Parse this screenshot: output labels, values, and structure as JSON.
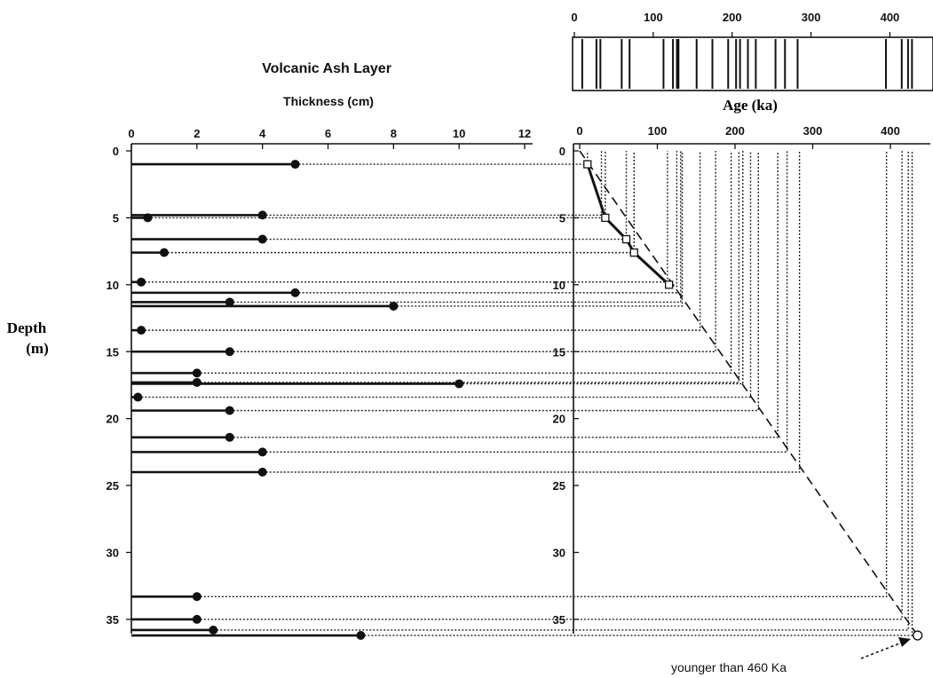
{
  "chart_data": [
    {
      "type": "bar",
      "orientation": "horizontal",
      "title": "Volcanic Ash Layer",
      "xlabel": "Thickness (cm)",
      "ylabel": "Depth (m)",
      "xlim": [
        0,
        12
      ],
      "ylim": [
        0,
        36
      ],
      "x_ticks": [
        "0",
        "2",
        "4",
        "6",
        "8",
        "10",
        "12"
      ],
      "y_ticks": [
        "0",
        "5",
        "10",
        "15",
        "20",
        "25",
        "30",
        "35"
      ],
      "layers": [
        {
          "depth": 1.0,
          "thickness": 5
        },
        {
          "depth": 4.8,
          "thickness": 4
        },
        {
          "depth": 5.0,
          "thickness": 0.5
        },
        {
          "depth": 6.6,
          "thickness": 4
        },
        {
          "depth": 7.6,
          "thickness": 1
        },
        {
          "depth": 9.8,
          "thickness": 0.3
        },
        {
          "depth": 10.6,
          "thickness": 5
        },
        {
          "depth": 11.3,
          "thickness": 3
        },
        {
          "depth": 11.6,
          "thickness": 8
        },
        {
          "depth": 13.4,
          "thickness": 0.3
        },
        {
          "depth": 15.0,
          "thickness": 3
        },
        {
          "depth": 16.6,
          "thickness": 2
        },
        {
          "depth": 17.3,
          "thickness": 2
        },
        {
          "depth": 17.4,
          "thickness": 10
        },
        {
          "depth": 18.4,
          "thickness": 0.2
        },
        {
          "depth": 19.4,
          "thickness": 3
        },
        {
          "depth": 21.4,
          "thickness": 3
        },
        {
          "depth": 22.5,
          "thickness": 4
        },
        {
          "depth": 24.0,
          "thickness": 4
        },
        {
          "depth": 33.3,
          "thickness": 2
        },
        {
          "depth": 35.0,
          "thickness": 2
        },
        {
          "depth": 35.8,
          "thickness": 2.5
        },
        {
          "depth": 36.2,
          "thickness": 7
        }
      ]
    },
    {
      "type": "line",
      "title": "Age (ka)",
      "xlabel": "Age (ka)",
      "xlim": [
        0,
        440
      ],
      "ylim": [
        0,
        36
      ],
      "x_ticks": [
        "0",
        "100",
        "200",
        "300",
        "400"
      ],
      "y_ticks": [
        "0",
        "5",
        "10",
        "15",
        "20",
        "25",
        "30",
        "35"
      ],
      "dated_points": [
        {
          "depth": 1.0,
          "age": 10
        },
        {
          "depth": 5.0,
          "age": 33
        },
        {
          "depth": 6.6,
          "age": 60
        },
        {
          "depth": 7.6,
          "age": 70
        },
        {
          "depth": 10.0,
          "age": 115
        }
      ],
      "trend_line": [
        {
          "depth": 0,
          "age": 0
        },
        {
          "depth": 36.2,
          "age": 435
        }
      ],
      "interpolated_ages": [
        {
          "depth": 1.0,
          "age": 10
        },
        {
          "depth": 4.8,
          "age": 28
        },
        {
          "depth": 5.0,
          "age": 33
        },
        {
          "depth": 6.6,
          "age": 60
        },
        {
          "depth": 7.6,
          "age": 70
        },
        {
          "depth": 9.8,
          "age": 113
        },
        {
          "depth": 10.6,
          "age": 125
        },
        {
          "depth": 11.3,
          "age": 130
        },
        {
          "depth": 11.6,
          "age": 132
        },
        {
          "depth": 13.4,
          "age": 155
        },
        {
          "depth": 15.0,
          "age": 175
        },
        {
          "depth": 16.6,
          "age": 195
        },
        {
          "depth": 17.3,
          "age": 205
        },
        {
          "depth": 17.4,
          "age": 210
        },
        {
          "depth": 18.4,
          "age": 220
        },
        {
          "depth": 19.4,
          "age": 230
        },
        {
          "depth": 21.4,
          "age": 255
        },
        {
          "depth": 22.5,
          "age": 267
        },
        {
          "depth": 24.0,
          "age": 283
        },
        {
          "depth": 33.3,
          "age": 395
        },
        {
          "depth": 35.0,
          "age": 415
        },
        {
          "depth": 35.8,
          "age": 423
        },
        {
          "depth": 36.2,
          "age": 428
        }
      ],
      "limit": {
        "depth": 36.2,
        "age": 435
      }
    },
    {
      "type": "table",
      "title": "Age (ka)",
      "xlim": [
        0,
        440
      ],
      "x_ticks": [
        "0",
        "100",
        "200",
        "300",
        "400"
      ],
      "event_ages": [
        10,
        28,
        33,
        60,
        70,
        113,
        125,
        130,
        132,
        155,
        175,
        195,
        205,
        210,
        220,
        230,
        255,
        267,
        283,
        395,
        415,
        423,
        428
      ]
    }
  ],
  "labels": {
    "title": "Volcanic Ash Layer",
    "thickness_axis": "Thickness (cm)",
    "depth_axis_line1": "Depth",
    "depth_axis_line2": "(m)",
    "age_axis": "Age (ka)",
    "note": "younger than 460 Ka"
  }
}
